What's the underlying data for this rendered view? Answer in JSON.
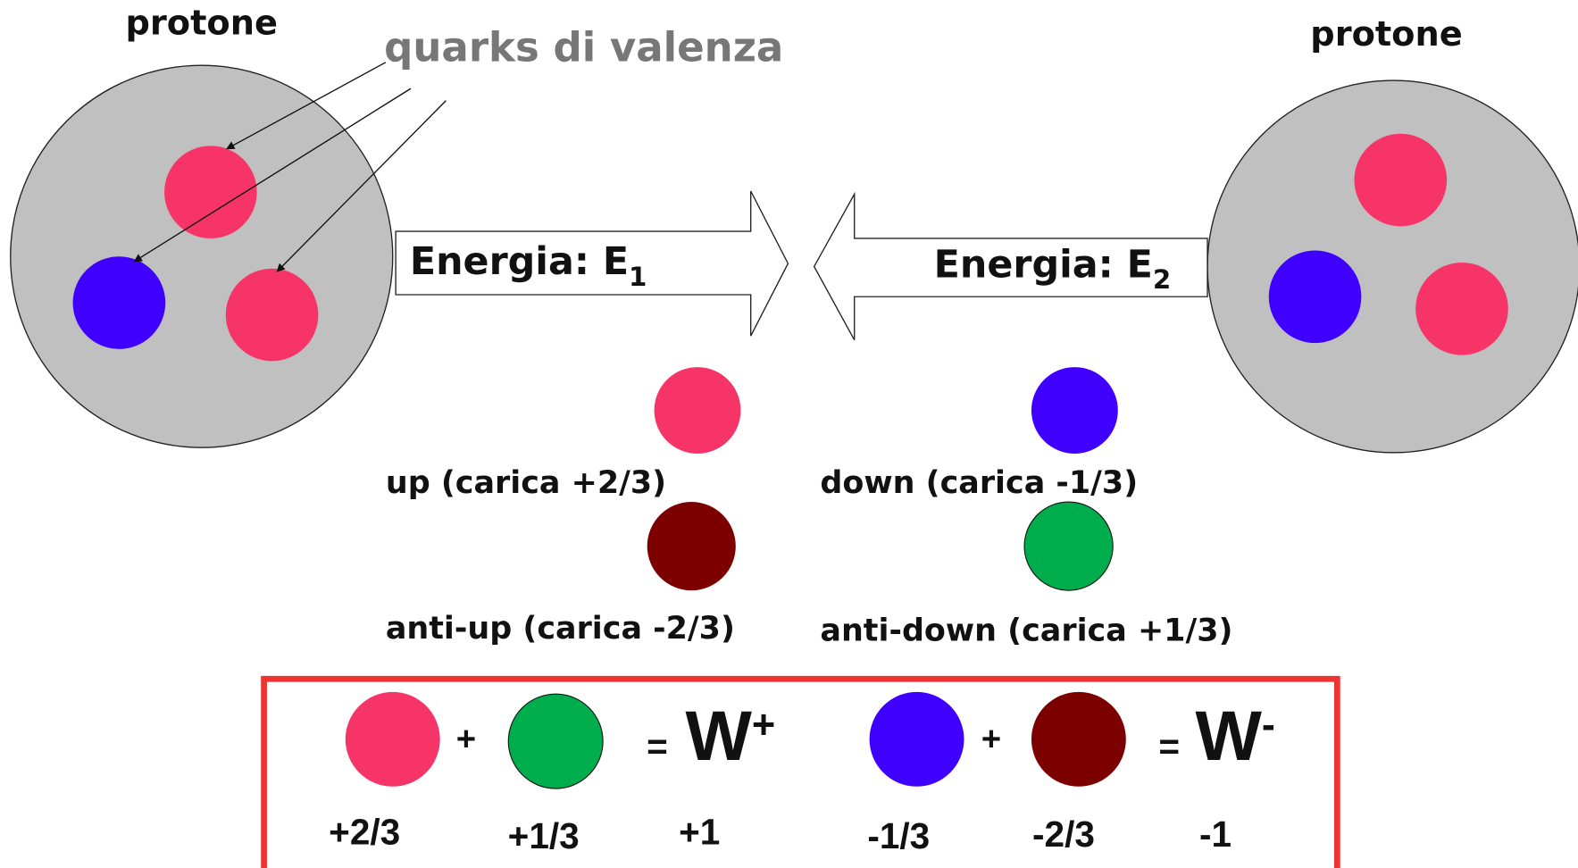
{
  "protons": [
    {
      "label": "protone"
    },
    {
      "label": "protone"
    }
  ],
  "annotation": "quarks di valenza",
  "arrows": [
    {
      "label": "Energia: E",
      "subscript": "1"
    },
    {
      "label": "Energia: E",
      "subscript": "2"
    }
  ],
  "legend": [
    {
      "label": "up (carica +2/3)"
    },
    {
      "label": "down (carica -1/3)"
    },
    {
      "label": "anti-up (carica -2/3)"
    },
    {
      "label": "anti-down (carica +1/3)"
    }
  ],
  "equations": [
    {
      "operator": "+",
      "equals": "=",
      "result": "W",
      "superscript": "+",
      "charges": [
        "+2/3",
        "+1/3",
        "+1"
      ]
    },
    {
      "operator": "+",
      "equals": "=",
      "result": "W",
      "superscript": "-",
      "charges": [
        "-1/3",
        "-2/3",
        "-1"
      ]
    }
  ]
}
